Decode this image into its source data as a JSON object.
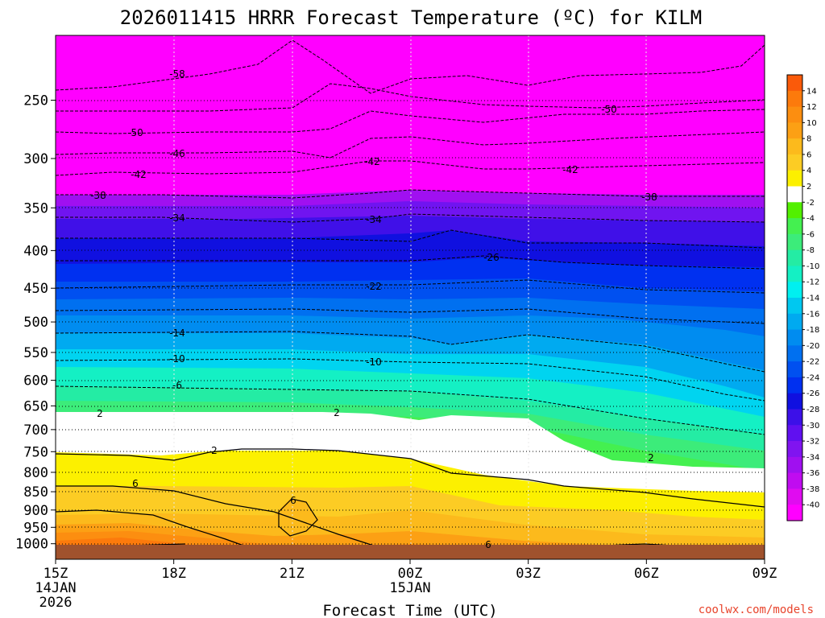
{
  "chart_data": {
    "type": "heatmap",
    "title": "2026011415 HRRR Forecast Temperature (ºC) for KILM",
    "xlabel": "Forecast Time (UTC)",
    "ylabel": "",
    "credit": "coolwx.com/models",
    "x_ticks": [
      {
        "lines": [
          "15Z",
          "14JAN",
          "2026"
        ],
        "hour": 15
      },
      {
        "lines": [
          "18Z"
        ],
        "hour": 18
      },
      {
        "lines": [
          "21Z"
        ],
        "hour": 21
      },
      {
        "lines": [
          "00Z",
          "15JAN"
        ],
        "hour": 24
      },
      {
        "lines": [
          "03Z"
        ],
        "hour": 27
      },
      {
        "lines": [
          "06Z"
        ],
        "hour": 30
      },
      {
        "lines": [
          "09Z"
        ],
        "hour": 33
      }
    ],
    "xlim": [
      15,
      33
    ],
    "y_ticks": [
      250,
      300,
      350,
      400,
      450,
      500,
      550,
      600,
      650,
      700,
      750,
      800,
      850,
      900,
      950,
      1000
    ],
    "ylim": [
      1010,
      200
    ],
    "y_scale": "log-pressure",
    "colorbar": {
      "levels": [
        14,
        12,
        10,
        8,
        6,
        4,
        2,
        -2,
        -4,
        -6,
        -8,
        -10,
        -12,
        -14,
        -16,
        -18,
        -20,
        -22,
        -24,
        -26,
        -28,
        -30,
        -32,
        -34,
        -36,
        -38,
        -40
      ],
      "colors": [
        "#fa5a0a",
        "#fc7a0c",
        "#fc8e10",
        "#fca014",
        "#fcba1c",
        "#fccc24",
        "#fcf000",
        "#ffffff",
        "#52f000",
        "#44f050",
        "#3cec7a",
        "#24eca4",
        "#14f0c4",
        "#00f0f0",
        "#00c8f0",
        "#00aaf0",
        "#008cf0",
        "#0070f0",
        "#0050f0",
        "#0030f0",
        "#1010e0",
        "#3c10e8",
        "#6010f0",
        "#8014f0",
        "#a010f0",
        "#c00cf0",
        "#e00cf0",
        "#ff00ff"
      ]
    },
    "contour_labels": [
      "-58",
      "-50",
      "-46",
      "-42",
      "-50",
      "-42",
      "-42",
      "-38",
      "-38",
      "-34",
      "-34",
      "-26",
      "-22",
      "-14",
      "-10",
      "-10",
      "-6",
      "2",
      "2",
      "2",
      "2",
      "6",
      "6",
      "6"
    ],
    "ground_color": "#a0522d"
  }
}
